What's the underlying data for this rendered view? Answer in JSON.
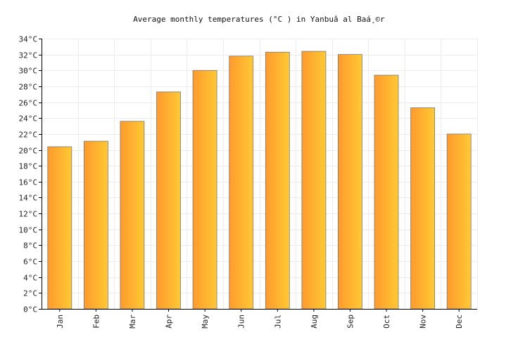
{
  "chart_data": {
    "type": "bar",
    "title": "Average monthly temperatures (°C ) in Yanbuâ  al Baá¸©r",
    "xlabel": "",
    "ylabel": "",
    "categories": [
      "Jan",
      "Feb",
      "Mar",
      "Apr",
      "May",
      "Jun",
      "Jul",
      "Aug",
      "Sep",
      "Oct",
      "Nov",
      "Dec"
    ],
    "values": [
      20.4,
      21.1,
      23.6,
      27.3,
      30.0,
      31.8,
      32.3,
      32.4,
      32.0,
      29.4,
      25.3,
      22.0
    ],
    "ylim": [
      0,
      34
    ],
    "yticks": [
      "0°C",
      "2°C",
      "4°C",
      "6°C",
      "8°C",
      "10°C",
      "12°C",
      "14°C",
      "16°C",
      "18°C",
      "20°C",
      "22°C",
      "24°C",
      "26°C",
      "28°C",
      "30°C",
      "32°C",
      "34°C"
    ],
    "grid": true,
    "legend": "none",
    "colors": {
      "bar_left": "#ff9a2e",
      "bar_right": "#ffc933",
      "bar_stroke": "#7a7a7a"
    }
  }
}
